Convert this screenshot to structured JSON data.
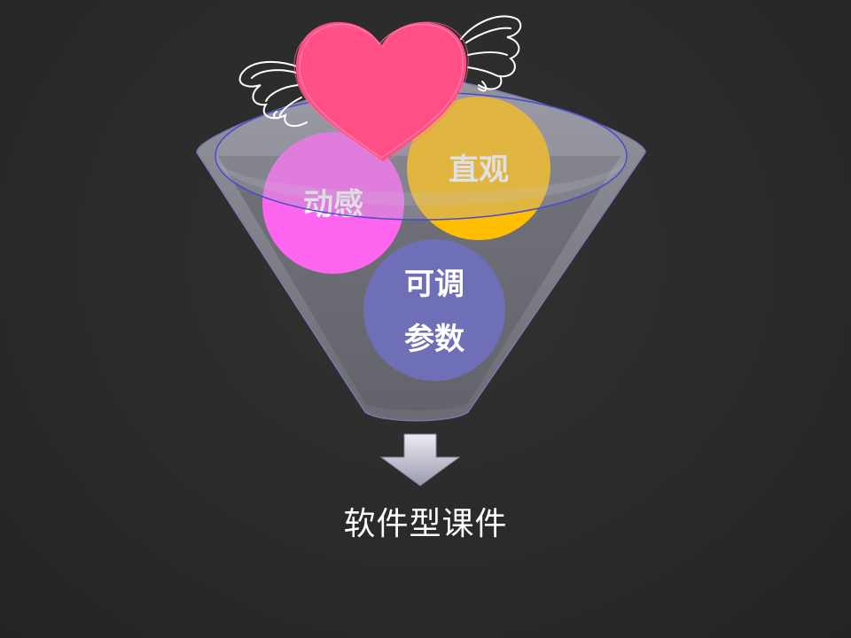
{
  "diagram": {
    "ingredients": [
      {
        "label": "动感",
        "color": "#ff66f0"
      },
      {
        "label": "直观",
        "color": "#ffbe00"
      },
      {
        "label_line1": "可调",
        "label_line2": "参数",
        "color": "#6f6fb8"
      }
    ],
    "result": "软件型课件"
  },
  "colors": {
    "background": "#2a2a2a",
    "funnel": "#8a8a92",
    "heart": "#ff4f86",
    "arrow": "#c8c8d6"
  }
}
